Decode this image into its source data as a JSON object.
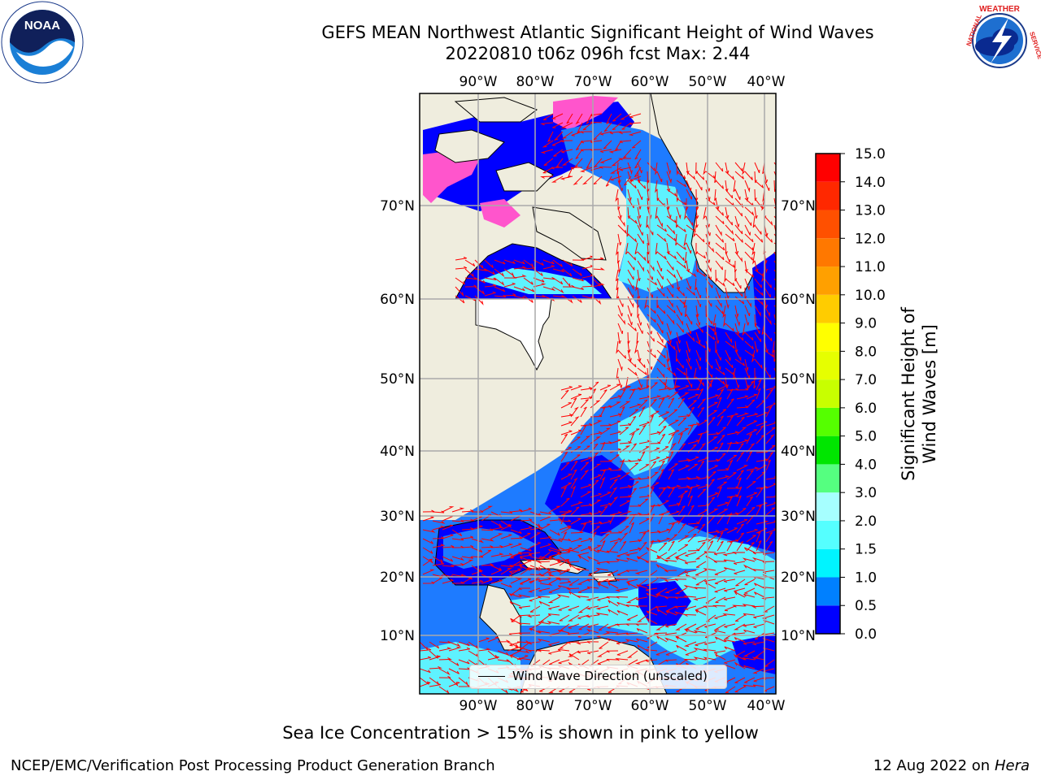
{
  "header": {
    "title_line1": "GEFS MEAN Northwest Atlantic Significant Height of Wind Waves",
    "title_line2": "20220810 t06z 096h fcst   Max: 2.44"
  },
  "logos": {
    "left": {
      "name": "noaa-logo",
      "text": "NOAA",
      "ring_text": "NATIONAL OCEANIC AND ATMOSPHERIC ADMINISTRATION · U.S. DEPARTMENT OF COMMERCE"
    },
    "right": {
      "name": "nws-logo",
      "ring_text": "NATIONAL WEATHER SERVICE"
    }
  },
  "map": {
    "lon_labels": [
      "90°W",
      "80°W",
      "70°W",
      "60°W",
      "50°W",
      "40°W"
    ],
    "lat_labels": [
      "70°N",
      "60°N",
      "50°N",
      "40°N",
      "30°N",
      "20°N",
      "10°N"
    ],
    "gridlines": true,
    "colors": {
      "land": "#efedde",
      "ocean_low": "#0000ff",
      "ocean_mid": "#1e7bff",
      "ocean_high": "#5ef2ff",
      "sea_ice": "#ff55cc",
      "arrows": "#ff0000"
    }
  },
  "legend": {
    "label": "Wind Wave Direction (unscaled)"
  },
  "colorbar": {
    "label": "Significant Height of Wind Waves [m]",
    "ticks": [
      "0.0",
      "0.5",
      "1.0",
      "1.5",
      "2.0",
      "3.0",
      "4.0",
      "5.0",
      "6.0",
      "7.0",
      "8.0",
      "9.0",
      "10.0",
      "11.0",
      "12.0",
      "13.0",
      "14.0",
      "15.0"
    ],
    "colors": [
      "#0000ff",
      "#0080ff",
      "#00f4ff",
      "#55ffff",
      "#a6ffff",
      "#55ff80",
      "#00e600",
      "#55ff00",
      "#c8ff00",
      "#e6ff00",
      "#ffff00",
      "#ffcc00",
      "#ffa000",
      "#ff7800",
      "#ff5000",
      "#ff2800",
      "#ff0000"
    ]
  },
  "footer": {
    "note": "Sea Ice Concentration > 15% is shown in pink to yellow",
    "credit": "NCEP/EMC/Verification Post Processing Product Generation Branch",
    "date": "12 Aug 2022 on",
    "host": "Hera"
  }
}
